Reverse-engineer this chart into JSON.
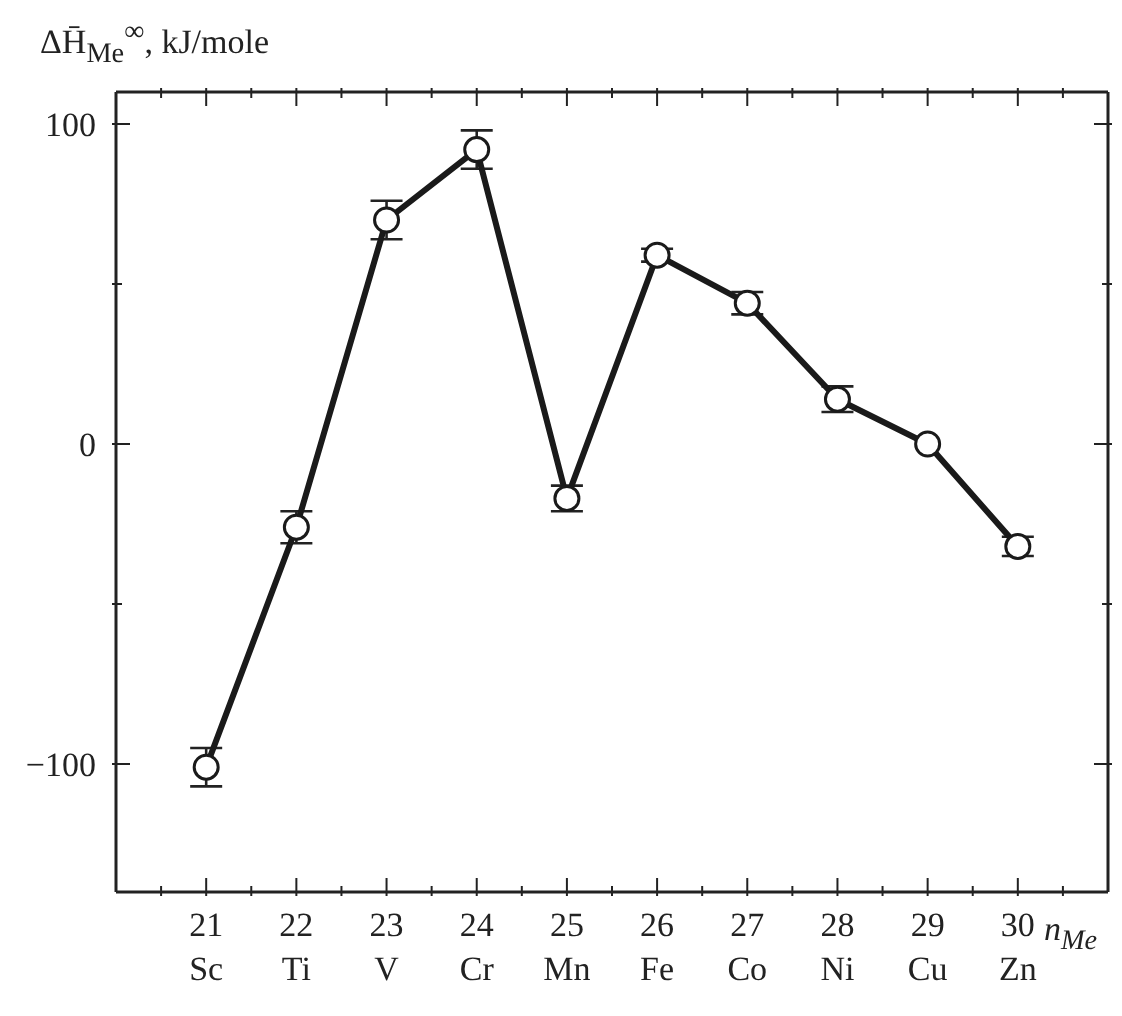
{
  "chart_data": {
    "type": "line",
    "ylabel": "ΔH̄$_{Me}$$^{∞}$, kJ/mole",
    "xlabel": "n$_{Me}$",
    "x": [
      21,
      22,
      23,
      24,
      25,
      26,
      27,
      28,
      29,
      30
    ],
    "series": [
      {
        "color": "#1a1a1a",
        "values": [
          -101,
          -26,
          70,
          92,
          -17,
          59,
          44,
          14,
          0,
          -32
        ],
        "errors": [
          6,
          5,
          6,
          6,
          4,
          2,
          3.5,
          4,
          null,
          3
        ]
      }
    ],
    "xlim": [
      20,
      31
    ],
    "xticks": [
      {
        "value": 20.5,
        "label": null
      },
      {
        "value": 21,
        "label": "21\nSc"
      },
      {
        "value": 21.5,
        "label": null
      },
      {
        "value": 22,
        "label": "22\nTi"
      },
      {
        "value": 22.5,
        "label": null
      },
      {
        "value": 23,
        "label": "23\nV"
      },
      {
        "value": 23.5,
        "label": null
      },
      {
        "value": 24,
        "label": "24\nCr"
      },
      {
        "value": 24.5,
        "label": null
      },
      {
        "value": 25,
        "label": "25\nMn"
      },
      {
        "value": 25.5,
        "label": null
      },
      {
        "value": 26,
        "label": "26\nFe"
      },
      {
        "value": 26.5,
        "label": null
      },
      {
        "value": 27,
        "label": "27\nCo"
      },
      {
        "value": 27.5,
        "label": null
      },
      {
        "value": 28,
        "label": "28\nNi"
      },
      {
        "value": 28.5,
        "label": null
      },
      {
        "value": 29,
        "label": "29\nCu"
      },
      {
        "value": 29.5,
        "label": null
      },
      {
        "value": 30,
        "label": "30\nZn"
      },
      {
        "value": 30.5,
        "label": null
      }
    ],
    "ylim": [
      -140,
      110
    ],
    "yticks": [
      -100,
      {
        "value": -50,
        "label": null
      },
      0,
      {
        "value": 50,
        "label": null
      },
      100
    ],
    "marker": "circle",
    "line_style": "solid",
    "grid": false
  }
}
